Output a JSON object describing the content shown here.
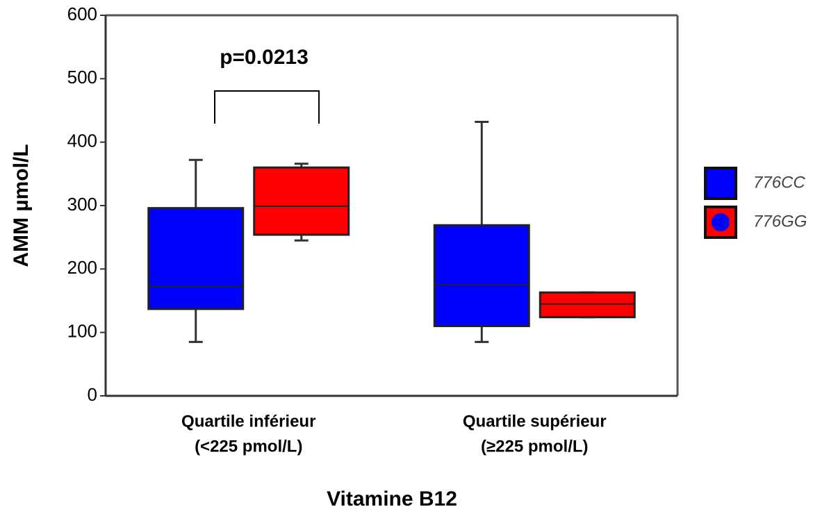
{
  "chart_data": {
    "type": "box",
    "xlabel": "Vitamine B12",
    "ylabel": "AMM µmol/L",
    "categories": [
      [
        "Quartile inférieur",
        "(<225 pmol/L)"
      ],
      [
        "Quartile supérieur",
        "(≥225 pmol/L)"
      ]
    ],
    "annotation": "p=0.0213",
    "ylim": [
      0,
      600
    ],
    "yticks": [
      0,
      100,
      200,
      300,
      400,
      500,
      600
    ],
    "legend": "right",
    "series": [
      {
        "name": "776CC",
        "color": "#0000ff",
        "boxes": [
          {
            "min": 85,
            "q1": 137,
            "median": 172,
            "q3": 296,
            "max": 372
          },
          {
            "min": 85,
            "q1": 110,
            "median": 175,
            "q3": 269,
            "max": 432
          }
        ]
      },
      {
        "name": "776GG",
        "color": "#ff0000",
        "boxes": [
          {
            "min": 245,
            "q1": 254,
            "median": 299,
            "q3": 360,
            "max": 366
          },
          {
            "min": 124,
            "q1": 124,
            "median": 145,
            "q3": 163,
            "max": 163
          }
        ]
      }
    ]
  }
}
